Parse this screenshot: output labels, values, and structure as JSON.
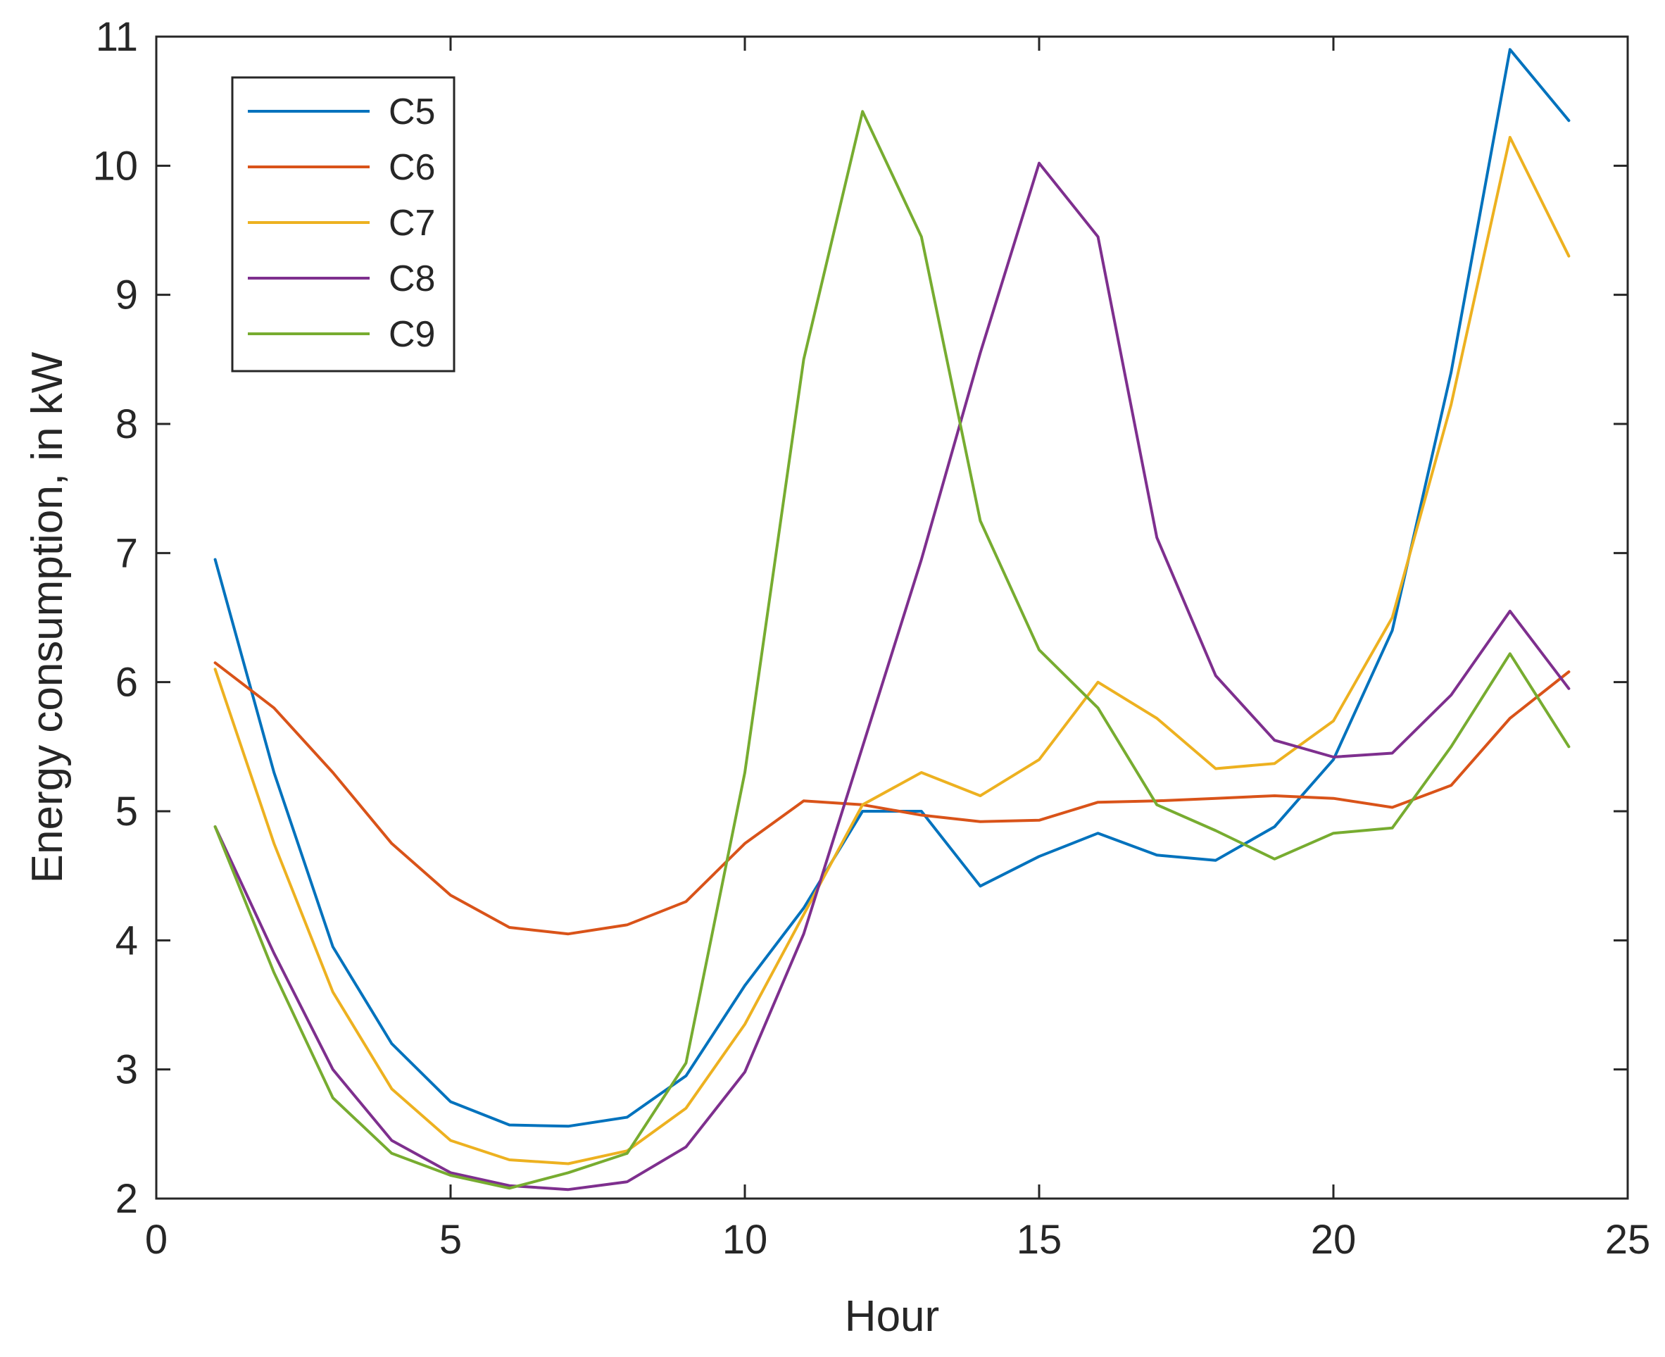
{
  "chart_data": {
    "type": "line",
    "xlabel": "Hour",
    "ylabel": "Energy consumption, in kW",
    "xlim": [
      0,
      25
    ],
    "ylim": [
      2,
      11
    ],
    "xticks": [
      0,
      5,
      10,
      15,
      20,
      25
    ],
    "yticks": [
      2,
      3,
      4,
      5,
      6,
      7,
      8,
      9,
      10,
      11
    ],
    "grid": false,
    "legend_position": "top-left",
    "x": [
      1,
      2,
      3,
      4,
      5,
      6,
      7,
      8,
      9,
      10,
      11,
      12,
      13,
      14,
      15,
      16,
      17,
      18,
      19,
      20,
      21,
      22,
      23,
      24
    ],
    "series": [
      {
        "name": "C5",
        "color": "#0072BD",
        "values": [
          6.95,
          5.3,
          3.95,
          3.2,
          2.75,
          2.57,
          2.56,
          2.63,
          2.95,
          3.65,
          4.25,
          5.0,
          5.0,
          4.42,
          4.65,
          4.83,
          4.66,
          4.62,
          4.88,
          5.4,
          6.4,
          8.4,
          10.9,
          10.35
        ]
      },
      {
        "name": "C6",
        "color": "#D95319",
        "values": [
          6.15,
          5.8,
          5.3,
          4.75,
          4.35,
          4.1,
          4.05,
          4.12,
          4.3,
          4.75,
          5.08,
          5.05,
          4.97,
          4.92,
          4.93,
          5.07,
          5.08,
          5.1,
          5.12,
          5.1,
          5.03,
          5.2,
          5.72,
          6.08
        ]
      },
      {
        "name": "C7",
        "color": "#EDB120",
        "values": [
          6.1,
          4.75,
          3.6,
          2.85,
          2.45,
          2.3,
          2.27,
          2.37,
          2.7,
          3.35,
          4.2,
          5.05,
          5.3,
          5.12,
          5.4,
          6.0,
          5.72,
          5.33,
          5.37,
          5.7,
          6.5,
          8.15,
          10.22,
          9.3
        ]
      },
      {
        "name": "C8",
        "color": "#7E2F8E",
        "values": [
          4.88,
          3.9,
          3.0,
          2.45,
          2.2,
          2.1,
          2.07,
          2.13,
          2.4,
          2.98,
          4.05,
          5.5,
          6.95,
          8.55,
          10.02,
          9.45,
          7.12,
          6.05,
          5.55,
          5.42,
          5.45,
          5.9,
          6.55,
          5.95
        ]
      },
      {
        "name": "C9",
        "color": "#77AC30",
        "values": [
          4.88,
          3.75,
          2.78,
          2.35,
          2.18,
          2.08,
          2.2,
          2.35,
          3.05,
          5.3,
          8.5,
          10.42,
          9.45,
          7.25,
          6.25,
          5.8,
          5.05,
          4.85,
          4.63,
          4.83,
          4.87,
          5.5,
          6.22,
          5.5
        ]
      }
    ]
  }
}
